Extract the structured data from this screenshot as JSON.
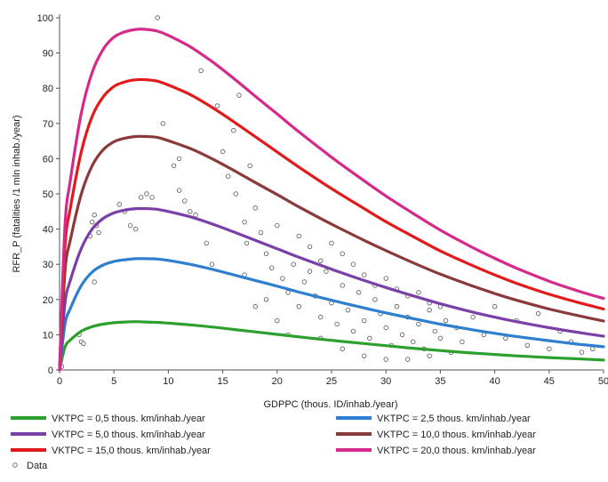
{
  "chart_data": {
    "type": "line",
    "xlabel": "GDPPC (thous. ID/inhab./year)",
    "ylabel": "RFR_P (fatalities /1 mln inhab./year)",
    "xlim": [
      0,
      50
    ],
    "ylim": [
      0,
      100
    ],
    "xticks": [
      "0",
      "5",
      "10",
      "15",
      "20",
      "25",
      "30",
      "35",
      "40",
      "45",
      "50"
    ],
    "yticks": [
      "0",
      "10",
      "20",
      "30",
      "40",
      "50",
      "60",
      "70",
      "80",
      "90",
      "100"
    ],
    "grid": false,
    "legend_position": "bottom",
    "x": [
      0,
      0.5,
      1,
      2,
      3,
      4,
      5,
      6,
      7,
      8,
      9,
      10,
      12,
      14,
      16,
      18,
      20,
      22,
      25,
      28,
      30,
      32,
      35,
      38,
      40,
      42,
      45,
      48,
      50
    ],
    "series": [
      {
        "name": "VKTPC = 0,5 thous. km/inhab./year",
        "color": "#2ca02c",
        "values": [
          0,
          6.5,
          8.5,
          11,
          12.3,
          13,
          13.4,
          13.6,
          13.7,
          13.6,
          13.5,
          13.3,
          12.8,
          12.2,
          11.5,
          10.8,
          10.1,
          9.4,
          8.4,
          7.5,
          6.9,
          6.3,
          5.5,
          4.8,
          4.4,
          4,
          3.5,
          3.1,
          2.8
        ]
      },
      {
        "name": "VKTPC = 2,5 thous. km/inhab./year",
        "color": "#2e7fcf",
        "values": [
          0,
          13,
          17.5,
          24,
          27.8,
          29.8,
          30.8,
          31.3,
          31.6,
          31.6,
          31.5,
          31.1,
          30,
          28.6,
          27,
          25.4,
          23.8,
          22.1,
          19.8,
          17.6,
          16.2,
          14.9,
          13,
          11.4,
          10.4,
          9.5,
          8.3,
          7.2,
          6.6
        ]
      },
      {
        "name": "VKTPC = 5,0 thous. km/inhab./year",
        "color": "#7b3fa8",
        "values": [
          0,
          19,
          25.5,
          34.5,
          40,
          43,
          44.6,
          45.4,
          45.8,
          45.8,
          45.6,
          45,
          43.5,
          41.5,
          39.2,
          36.8,
          34.4,
          32,
          28.6,
          25.4,
          23.4,
          21.5,
          18.8,
          16.4,
          15,
          13.7,
          12,
          10.5,
          9.6
        ]
      },
      {
        "name": "VKTPC = 10,0 thous. km/inhab./year",
        "color": "#8b3a3a",
        "values": [
          0,
          28,
          37,
          50,
          58,
          62.5,
          64.8,
          65.8,
          66.3,
          66.3,
          66,
          65.1,
          62.9,
          60,
          56.7,
          53.2,
          49.8,
          46.3,
          41.4,
          36.8,
          33.9,
          31.1,
          27.2,
          23.8,
          21.7,
          19.8,
          17.3,
          15.2,
          13.9
        ]
      },
      {
        "name": "VKTPC = 15,0 thous. km/inhab./year",
        "color": "#e31a1c",
        "values": [
          0,
          35,
          46,
          62,
          72,
          77.5,
          80.5,
          81.8,
          82.4,
          82.4,
          82,
          80.9,
          78.2,
          74.6,
          70.5,
          66.2,
          61.9,
          57.6,
          51.5,
          45.8,
          42.1,
          38.7,
          33.8,
          29.6,
          27,
          24.6,
          21.5,
          18.9,
          17.3
        ]
      },
      {
        "name": "VKTPC = 20,0 thous. km/inhab./year",
        "color": "#d62a8a",
        "values": [
          0,
          41,
          54,
          73,
          84.5,
          91,
          94.5,
          96,
          96.7,
          96.7,
          96.2,
          95,
          91.8,
          87.6,
          82.8,
          77.7,
          72.7,
          67.6,
          60.4,
          53.7,
          49.4,
          45.4,
          39.7,
          34.7,
          31.7,
          28.9,
          25.2,
          22.1,
          20.3
        ]
      }
    ],
    "scatter": {
      "name": "Data",
      "points": [
        [
          0.2,
          1
        ],
        [
          1.8,
          10
        ],
        [
          2,
          8
        ],
        [
          2.2,
          7.5
        ],
        [
          2.8,
          38
        ],
        [
          3,
          42
        ],
        [
          3.2,
          44
        ],
        [
          3.4,
          41
        ],
        [
          3.6,
          39
        ],
        [
          3.2,
          25
        ],
        [
          5.5,
          47
        ],
        [
          6,
          45
        ],
        [
          6.5,
          41
        ],
        [
          7,
          40
        ],
        [
          7.5,
          49
        ],
        [
          8,
          50
        ],
        [
          8.5,
          49
        ],
        [
          9,
          100
        ],
        [
          9.5,
          70
        ],
        [
          10.5,
          58
        ],
        [
          11,
          60
        ],
        [
          11,
          51
        ],
        [
          11.5,
          48
        ],
        [
          12,
          45
        ],
        [
          12.5,
          44
        ],
        [
          13,
          85
        ],
        [
          13.5,
          36
        ],
        [
          14,
          30
        ],
        [
          14.5,
          75
        ],
        [
          15,
          62
        ],
        [
          15.5,
          55
        ],
        [
          16,
          68
        ],
        [
          16.2,
          50
        ],
        [
          16.5,
          78
        ],
        [
          17,
          42
        ],
        [
          17.2,
          36
        ],
        [
          17.5,
          58
        ],
        [
          18,
          46
        ],
        [
          18.5,
          39
        ],
        [
          19,
          33
        ],
        [
          19.5,
          29
        ],
        [
          20,
          41
        ],
        [
          20.5,
          26
        ],
        [
          21,
          22
        ],
        [
          21.5,
          30
        ],
        [
          22,
          18
        ],
        [
          22.5,
          25
        ],
        [
          23,
          35
        ],
        [
          23.5,
          21
        ],
        [
          24,
          15
        ],
        [
          24.5,
          28
        ],
        [
          25,
          19
        ],
        [
          25.5,
          13
        ],
        [
          26,
          24
        ],
        [
          26.5,
          17
        ],
        [
          27,
          11
        ],
        [
          27.5,
          22
        ],
        [
          28,
          14
        ],
        [
          28.5,
          9
        ],
        [
          29,
          20
        ],
        [
          29.5,
          16
        ],
        [
          30,
          12
        ],
        [
          30.5,
          7
        ],
        [
          31,
          18
        ],
        [
          31.5,
          10
        ],
        [
          32,
          15
        ],
        [
          32.5,
          8
        ],
        [
          33,
          13
        ],
        [
          33.5,
          6
        ],
        [
          34,
          17
        ],
        [
          34.5,
          11
        ],
        [
          35,
          9
        ],
        [
          35.5,
          14
        ],
        [
          36,
          5
        ],
        [
          36.5,
          12
        ],
        [
          37,
          8
        ],
        [
          38,
          15
        ],
        [
          39,
          10
        ],
        [
          40,
          18
        ],
        [
          41,
          9
        ],
        [
          42,
          14
        ],
        [
          43,
          7
        ],
        [
          44,
          16
        ],
        [
          45,
          6
        ],
        [
          46,
          11
        ],
        [
          47,
          8
        ],
        [
          48,
          5
        ],
        [
          49,
          6
        ],
        [
          20,
          14
        ],
        [
          21,
          10
        ],
        [
          23,
          28
        ],
        [
          24,
          31
        ],
        [
          25,
          36
        ],
        [
          26,
          33
        ],
        [
          27,
          30
        ],
        [
          28,
          27
        ],
        [
          29,
          24
        ],
        [
          30,
          26
        ],
        [
          31,
          23
        ],
        [
          32,
          21
        ],
        [
          33,
          22
        ],
        [
          34,
          19
        ],
        [
          35,
          18
        ],
        [
          19,
          20
        ],
        [
          18,
          18
        ],
        [
          17,
          27
        ],
        [
          22,
          38
        ],
        [
          24,
          9
        ],
        [
          26,
          6
        ],
        [
          28,
          4
        ],
        [
          30,
          3
        ],
        [
          32,
          3
        ],
        [
          34,
          4
        ]
      ]
    }
  }
}
